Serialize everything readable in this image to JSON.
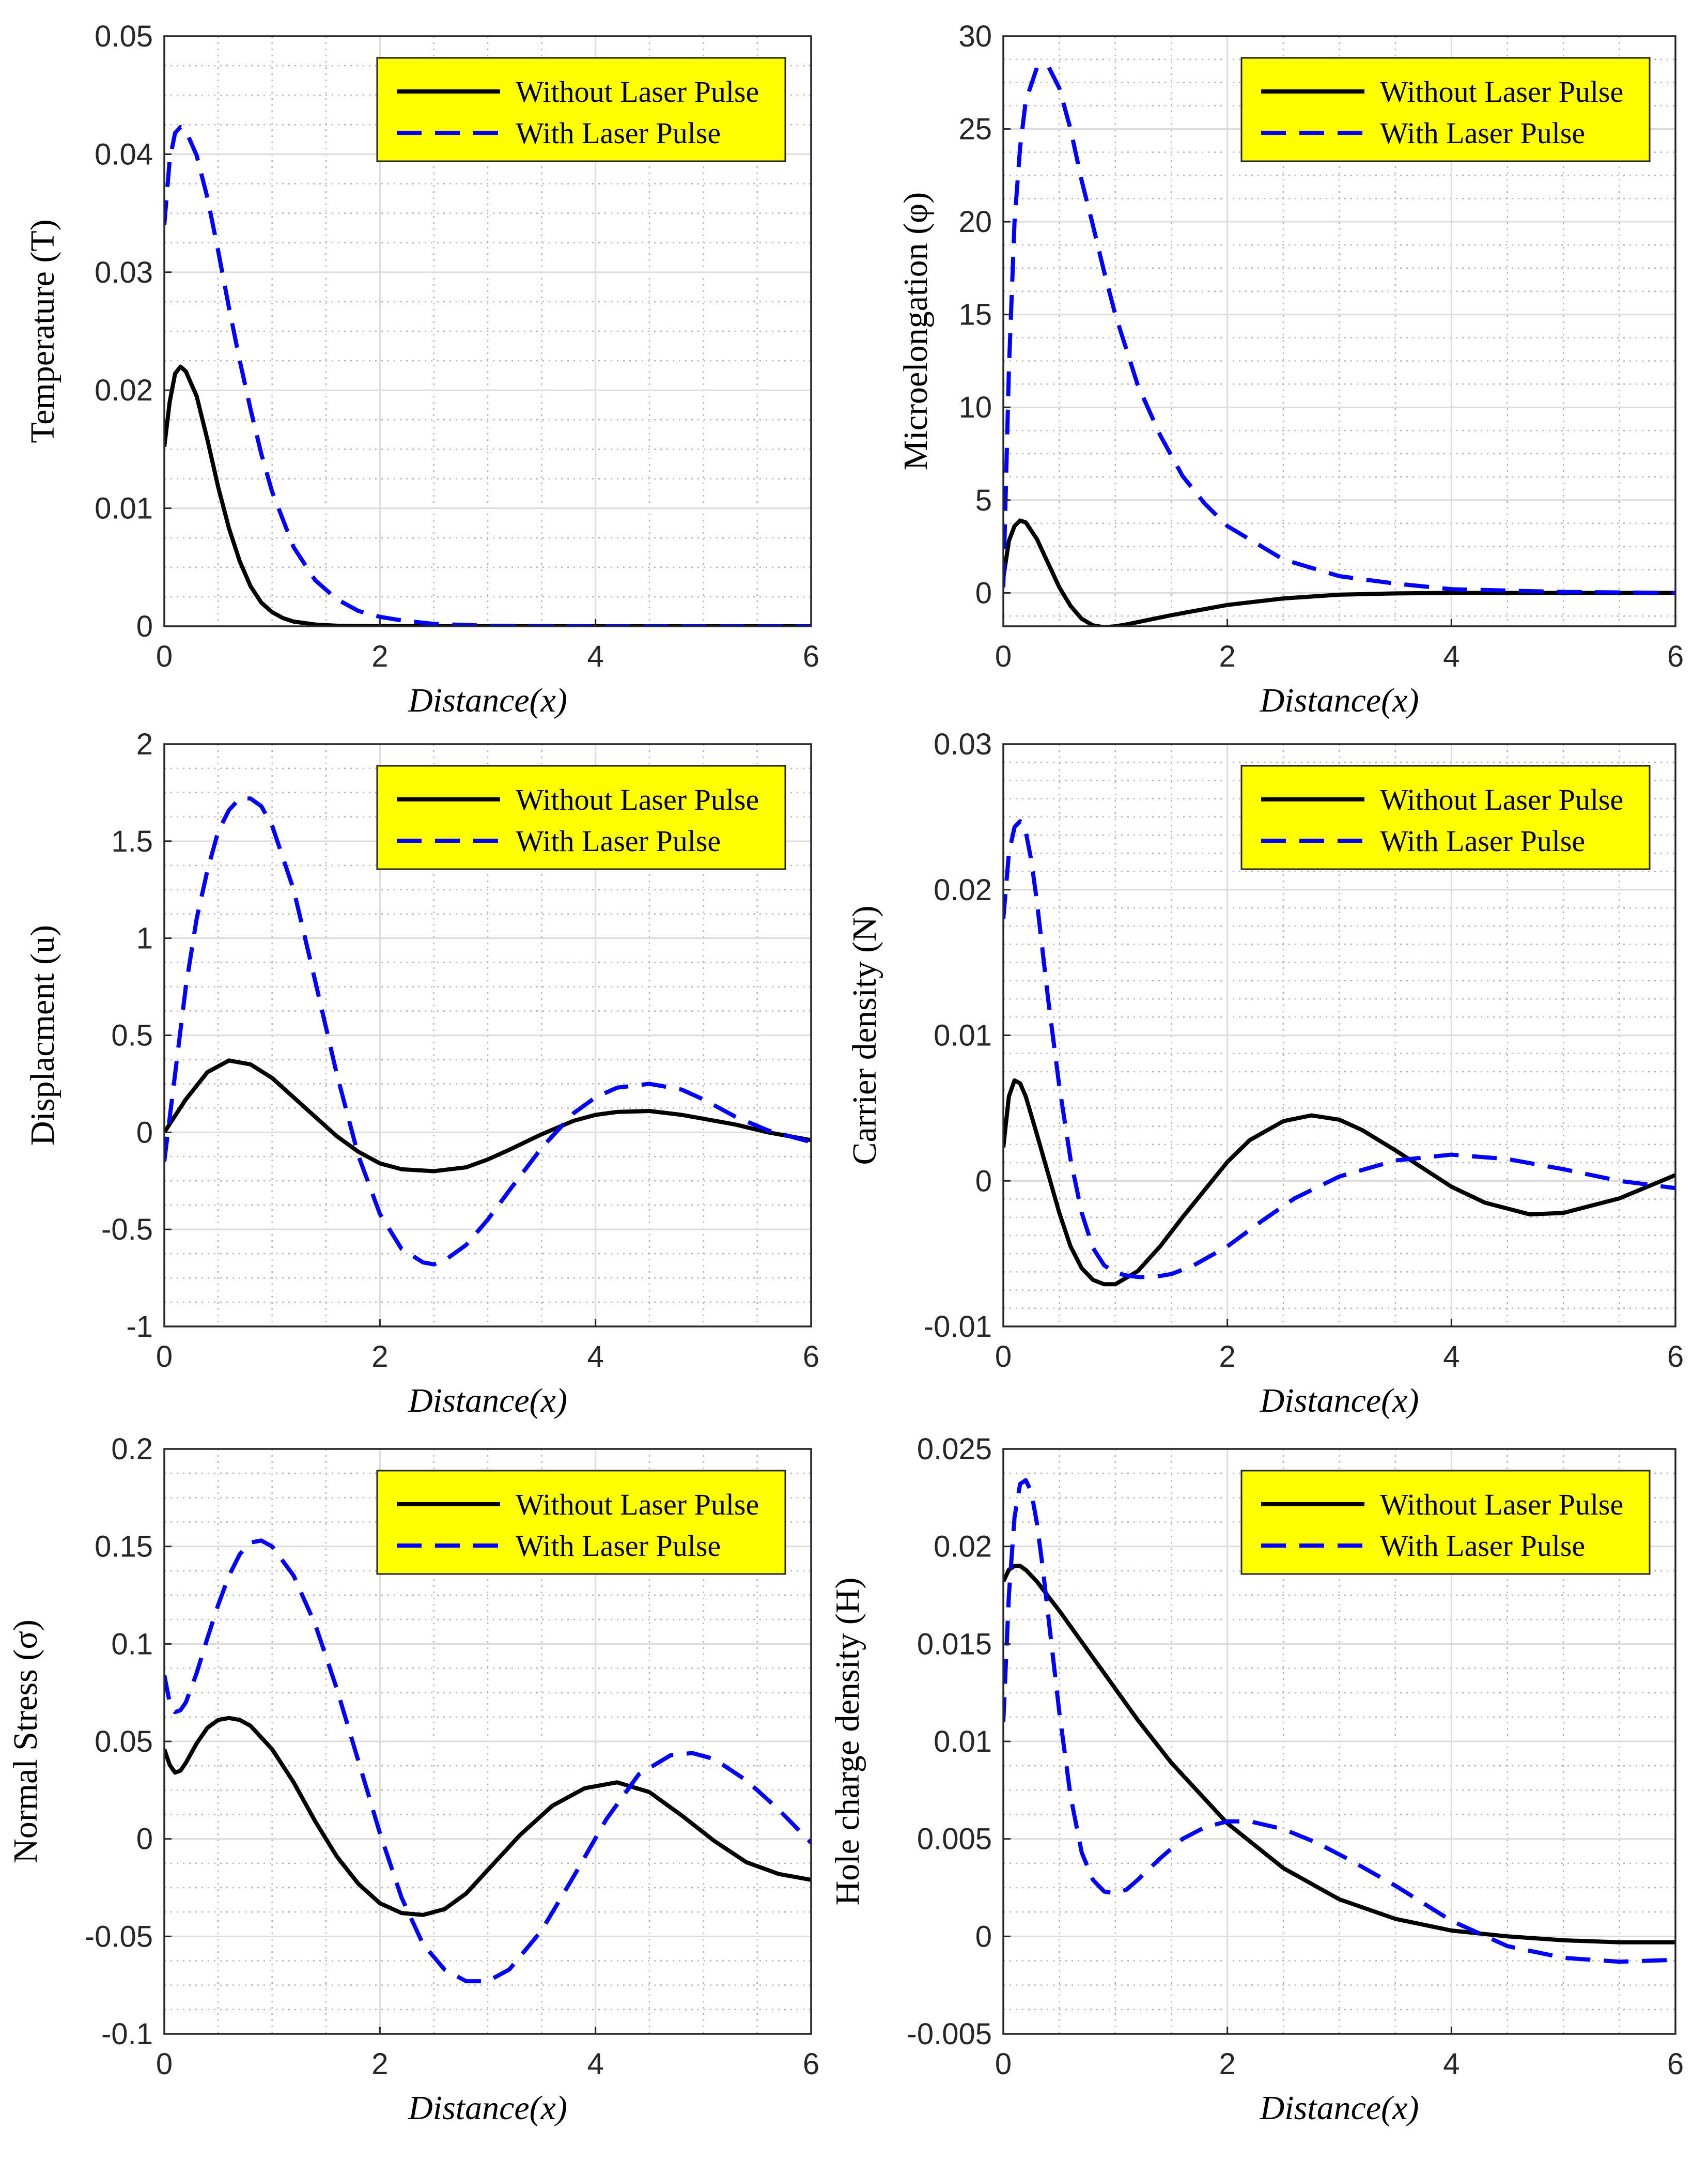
{
  "colors": {
    "without": "#000000",
    "with": "#0000ff",
    "legend_bg": "#ffff00",
    "grid_major": "#dcdcdc",
    "grid_minor": "#b4b4b4"
  },
  "legend": {
    "without_label": "Without Laser Pulse",
    "with_label": "With Laser Pulse"
  },
  "chart_data": [
    {
      "id": "temperature",
      "type": "line",
      "ylabel": "Temperature (T)",
      "xlabel": "Distance(x)",
      "xlim": [
        0,
        6
      ],
      "ylim": [
        0,
        0.05
      ],
      "xticks": [
        0,
        2,
        4,
        6
      ],
      "xtick_labels": [
        "0",
        "2",
        "4",
        "6"
      ],
      "yticks": [
        0,
        0.01,
        0.02,
        0.03,
        0.04,
        0.05
      ],
      "ytick_labels": [
        "0",
        "0.01",
        "0.02",
        "0.03",
        "0.04",
        "0.05"
      ],
      "grid": true,
      "legend_position": "top-right",
      "series": [
        {
          "name": "Without Laser Pulse",
          "style": "solid",
          "x": [
            0,
            0.05,
            0.1,
            0.15,
            0.2,
            0.3,
            0.4,
            0.5,
            0.6,
            0.7,
            0.8,
            0.9,
            1.0,
            1.1,
            1.2,
            1.4,
            1.6,
            1.8,
            2.0,
            2.5,
            3,
            4,
            5,
            6
          ],
          "y": [
            0.0152,
            0.019,
            0.0214,
            0.022,
            0.0216,
            0.0195,
            0.0158,
            0.0118,
            0.0083,
            0.0055,
            0.0034,
            0.002,
            0.0012,
            0.0007,
            0.0004,
            0.00015,
            5e-05,
            2e-05,
            1e-05,
            0,
            0,
            0,
            0,
            0
          ]
        },
        {
          "name": "With Laser Pulse",
          "style": "dashed",
          "x": [
            0,
            0.05,
            0.1,
            0.15,
            0.2,
            0.3,
            0.4,
            0.5,
            0.6,
            0.7,
            0.8,
            0.9,
            1.0,
            1.2,
            1.4,
            1.6,
            1.8,
            2.0,
            2.2,
            2.5,
            3,
            3.5,
            4,
            5,
            6
          ],
          "y": [
            0.034,
            0.0395,
            0.0418,
            0.0423,
            0.042,
            0.0399,
            0.0363,
            0.0318,
            0.027,
            0.0225,
            0.0184,
            0.0146,
            0.0114,
            0.0067,
            0.0039,
            0.0023,
            0.0013,
            0.0008,
            0.0005,
            0.0002,
            5e-05,
            1e-05,
            0,
            0,
            0
          ]
        }
      ]
    },
    {
      "id": "microelongation",
      "type": "line",
      "ylabel": "Microelongation (φ)",
      "xlabel": "Distance(x)",
      "xlim": [
        0,
        6
      ],
      "ylim": [
        -1.8,
        30
      ],
      "xticks": [
        0,
        2,
        4,
        6
      ],
      "xtick_labels": [
        "0",
        "2",
        "4",
        "6"
      ],
      "yticks": [
        0,
        5,
        10,
        15,
        20,
        25,
        30
      ],
      "ytick_labels": [
        "0",
        "5",
        "10",
        "15",
        "20",
        "25",
        "30"
      ],
      "grid": true,
      "legend_position": "top-right",
      "series": [
        {
          "name": "Without Laser Pulse",
          "style": "solid",
          "x": [
            0,
            0.05,
            0.1,
            0.15,
            0.2,
            0.3,
            0.4,
            0.5,
            0.6,
            0.7,
            0.8,
            0.9,
            1.0,
            1.1,
            1.3,
            1.5,
            2.0,
            2.5,
            3.0,
            3.5,
            4,
            5,
            6
          ],
          "y": [
            0.8,
            2.8,
            3.6,
            3.9,
            3.8,
            2.9,
            1.6,
            0.3,
            -0.7,
            -1.4,
            -1.75,
            -1.85,
            -1.8,
            -1.7,
            -1.45,
            -1.2,
            -0.65,
            -0.3,
            -0.1,
            -0.03,
            0,
            0,
            0
          ]
        },
        {
          "name": "With Laser Pulse",
          "style": "dashed",
          "x": [
            0,
            0.05,
            0.1,
            0.15,
            0.2,
            0.3,
            0.4,
            0.5,
            0.6,
            0.7,
            0.8,
            0.9,
            1.0,
            1.2,
            1.4,
            1.6,
            1.8,
            2.0,
            2.5,
            3.0,
            3.5,
            4,
            5,
            6
          ],
          "y": [
            0.3,
            12,
            20,
            24,
            26.5,
            28.3,
            28.4,
            27.2,
            25,
            22.2,
            19.8,
            17.3,
            15,
            11.2,
            8.5,
            6.3,
            4.8,
            3.6,
            1.8,
            0.9,
            0.5,
            0.2,
            0.05,
            0
          ]
        }
      ]
    },
    {
      "id": "displacement",
      "type": "line",
      "ylabel": "Displacment (u)",
      "xlabel": "Distance(x)",
      "xlim": [
        0,
        6
      ],
      "ylim": [
        -1,
        2
      ],
      "xticks": [
        0,
        2,
        4,
        6
      ],
      "xtick_labels": [
        "0",
        "2",
        "4",
        "6"
      ],
      "yticks": [
        -1,
        -0.5,
        0,
        0.5,
        1,
        1.5,
        2
      ],
      "ytick_labels": [
        "-1",
        "-0.5",
        "0",
        "0.5",
        "1",
        "1.5",
        "2"
      ],
      "grid": true,
      "legend_position": "top-right",
      "series": [
        {
          "name": "Without Laser Pulse",
          "style": "solid",
          "x": [
            0,
            0.2,
            0.4,
            0.6,
            0.8,
            1.0,
            1.2,
            1.4,
            1.6,
            1.8,
            2.0,
            2.2,
            2.5,
            2.8,
            3.0,
            3.2,
            3.5,
            3.8,
            4.0,
            4.2,
            4.5,
            4.8,
            5.0,
            5.3,
            5.6,
            6.0
          ],
          "y": [
            0,
            0.17,
            0.31,
            0.37,
            0.35,
            0.28,
            0.18,
            0.08,
            -0.02,
            -0.1,
            -0.16,
            -0.19,
            -0.2,
            -0.18,
            -0.14,
            -0.09,
            -0.01,
            0.06,
            0.09,
            0.105,
            0.11,
            0.09,
            0.07,
            0.04,
            0.0,
            -0.04
          ]
        },
        {
          "name": "With Laser Pulse",
          "style": "dashed",
          "x": [
            0,
            0.1,
            0.2,
            0.3,
            0.4,
            0.5,
            0.6,
            0.7,
            0.8,
            0.9,
            1.0,
            1.2,
            1.4,
            1.6,
            1.8,
            2.0,
            2.2,
            2.4,
            2.5,
            2.6,
            2.8,
            3.0,
            3.2,
            3.5,
            3.8,
            4.0,
            4.2,
            4.5,
            4.8,
            5.0,
            5.3,
            5.6,
            6.0
          ],
          "y": [
            -0.15,
            0.3,
            0.75,
            1.1,
            1.35,
            1.55,
            1.66,
            1.72,
            1.72,
            1.68,
            1.58,
            1.25,
            0.78,
            0.3,
            -0.12,
            -0.42,
            -0.6,
            -0.67,
            -0.68,
            -0.66,
            -0.58,
            -0.45,
            -0.3,
            -0.08,
            0.1,
            0.18,
            0.23,
            0.25,
            0.22,
            0.17,
            0.08,
            0.01,
            -0.05
          ]
        }
      ]
    },
    {
      "id": "carrier_density",
      "type": "line",
      "ylabel": "Carrier density (N)",
      "xlabel": "Distance(x)",
      "xlim": [
        0,
        6
      ],
      "ylim": [
        -0.01,
        0.03
      ],
      "xticks": [
        0,
        2,
        4,
        6
      ],
      "xtick_labels": [
        "0",
        "2",
        "4",
        "6"
      ],
      "yticks": [
        -0.01,
        0,
        0.01,
        0.02,
        0.03
      ],
      "ytick_labels": [
        "-0.01",
        "0",
        "0.01",
        "0.02",
        "0.03"
      ],
      "grid": true,
      "legend_position": "top-right",
      "series": [
        {
          "name": "Without Laser Pulse",
          "style": "solid",
          "x": [
            0,
            0.05,
            0.1,
            0.15,
            0.2,
            0.3,
            0.4,
            0.5,
            0.6,
            0.7,
            0.8,
            0.9,
            1.0,
            1.2,
            1.4,
            1.6,
            1.8,
            2.0,
            2.2,
            2.5,
            2.75,
            3.0,
            3.2,
            3.5,
            3.8,
            4.0,
            4.3,
            4.7,
            5.0,
            5.5,
            6.0
          ],
          "y": [
            0.0023,
            0.0058,
            0.0069,
            0.0067,
            0.0058,
            0.0032,
            0.0005,
            -0.0022,
            -0.0045,
            -0.006,
            -0.0068,
            -0.0071,
            -0.0071,
            -0.0062,
            -0.0045,
            -0.0025,
            -0.0006,
            0.0013,
            0.0028,
            0.0041,
            0.0045,
            0.0042,
            0.0035,
            0.0021,
            0.0006,
            -0.0004,
            -0.0015,
            -0.0023,
            -0.0022,
            -0.0012,
            0.0004
          ]
        },
        {
          "name": "With Laser Pulse",
          "style": "dashed",
          "x": [
            0,
            0.05,
            0.1,
            0.15,
            0.2,
            0.25,
            0.3,
            0.4,
            0.5,
            0.6,
            0.7,
            0.8,
            0.9,
            1.0,
            1.1,
            1.2,
            1.35,
            1.5,
            1.7,
            2.0,
            2.3,
            2.6,
            3.0,
            3.5,
            4.0,
            4.5,
            5.0,
            5.5,
            6.0
          ],
          "y": [
            0.018,
            0.0225,
            0.0243,
            0.0247,
            0.024,
            0.022,
            0.0192,
            0.0125,
            0.0065,
            0.0015,
            -0.0022,
            -0.0046,
            -0.0058,
            -0.0063,
            -0.0065,
            -0.0066,
            -0.0066,
            -0.0064,
            -0.0058,
            -0.0045,
            -0.0028,
            -0.0012,
            0.0003,
            0.0014,
            0.0018,
            0.0015,
            0.0008,
            0.0,
            -0.0005
          ]
        }
      ]
    },
    {
      "id": "normal_stress",
      "type": "line",
      "ylabel": "Normal Stress (σ)",
      "xlabel": "Distance(x)",
      "xlim": [
        0,
        6
      ],
      "ylim": [
        -0.1,
        0.2
      ],
      "xticks": [
        0,
        2,
        4,
        6
      ],
      "xtick_labels": [
        "0",
        "2",
        "4",
        "6"
      ],
      "yticks": [
        -0.1,
        -0.05,
        0,
        0.05,
        0.1,
        0.15,
        0.2
      ],
      "ytick_labels": [
        "-0.1",
        "-0.05",
        "0",
        "0.05",
        "0.1",
        "0.15",
        "0.2"
      ],
      "grid": true,
      "legend_position": "top-right",
      "series": [
        {
          "name": "Without Laser Pulse",
          "style": "solid",
          "x": [
            0,
            0.05,
            0.1,
            0.15,
            0.2,
            0.3,
            0.4,
            0.5,
            0.6,
            0.7,
            0.8,
            1.0,
            1.2,
            1.4,
            1.6,
            1.8,
            2.0,
            2.2,
            2.4,
            2.6,
            2.8,
            3.0,
            3.3,
            3.6,
            3.9,
            4.2,
            4.5,
            4.8,
            5.1,
            5.4,
            5.7,
            6.0
          ],
          "y": [
            0.046,
            0.038,
            0.034,
            0.035,
            0.039,
            0.049,
            0.057,
            0.061,
            0.062,
            0.061,
            0.058,
            0.046,
            0.029,
            0.009,
            -0.009,
            -0.023,
            -0.033,
            -0.038,
            -0.039,
            -0.036,
            -0.028,
            -0.016,
            0.002,
            0.017,
            0.026,
            0.029,
            0.024,
            0.012,
            -0.001,
            -0.012,
            -0.018,
            -0.021
          ]
        },
        {
          "name": "With Laser Pulse",
          "style": "dashed",
          "x": [
            0,
            0.05,
            0.1,
            0.15,
            0.2,
            0.3,
            0.4,
            0.5,
            0.6,
            0.7,
            0.8,
            0.9,
            1.0,
            1.2,
            1.4,
            1.6,
            1.8,
            2.0,
            2.2,
            2.4,
            2.6,
            2.8,
            3.0,
            3.2,
            3.5,
            3.8,
            4.1,
            4.4,
            4.7,
            4.9,
            5.1,
            5.4,
            5.7,
            6.0
          ],
          "y": [
            0.084,
            0.07,
            0.065,
            0.066,
            0.07,
            0.085,
            0.103,
            0.12,
            0.135,
            0.146,
            0.152,
            0.153,
            0.15,
            0.135,
            0.11,
            0.077,
            0.04,
            0.003,
            -0.03,
            -0.054,
            -0.067,
            -0.073,
            -0.073,
            -0.067,
            -0.047,
            -0.019,
            0.01,
            0.033,
            0.043,
            0.044,
            0.041,
            0.03,
            0.015,
            -0.002
          ]
        }
      ]
    },
    {
      "id": "hole_charge_density",
      "type": "line",
      "ylabel": "Hole  charge  density (H)",
      "xlabel": "Distance(x)",
      "xlim": [
        0,
        6
      ],
      "ylim": [
        -0.005,
        0.025
      ],
      "xticks": [
        0,
        2,
        4,
        6
      ],
      "xtick_labels": [
        "0",
        "2",
        "4",
        "6"
      ],
      "yticks": [
        -0.005,
        0,
        0.005,
        0.01,
        0.015,
        0.02,
        0.025
      ],
      "ytick_labels": [
        "-0.005",
        "0",
        "0.005",
        "0.01",
        "0.015",
        "0.02",
        "0.025"
      ],
      "grid": true,
      "legend_position": "top-right",
      "series": [
        {
          "name": "Without Laser Pulse",
          "style": "solid",
          "x": [
            0,
            0.05,
            0.1,
            0.15,
            0.2,
            0.3,
            0.5,
            0.8,
            1.0,
            1.2,
            1.5,
            2.0,
            2.5,
            3.0,
            3.5,
            4.0,
            4.5,
            5.0,
            5.5,
            6.0
          ],
          "y": [
            0.0182,
            0.0188,
            0.019,
            0.019,
            0.0188,
            0.0182,
            0.0167,
            0.0143,
            0.0127,
            0.0111,
            0.0089,
            0.0058,
            0.0035,
            0.0019,
            0.0009,
            0.0003,
            0.0,
            -0.0002,
            -0.0003,
            -0.0003
          ]
        },
        {
          "name": "With Laser Pulse",
          "style": "dashed",
          "x": [
            0,
            0.05,
            0.1,
            0.15,
            0.2,
            0.25,
            0.3,
            0.35,
            0.4,
            0.5,
            0.6,
            0.7,
            0.8,
            0.9,
            1.0,
            1.1,
            1.2,
            1.4,
            1.6,
            1.8,
            2.0,
            2.2,
            2.5,
            2.8,
            3.1,
            3.5,
            4.0,
            4.5,
            5.0,
            5.5,
            6.0
          ],
          "y": [
            0.011,
            0.0175,
            0.0215,
            0.0232,
            0.0234,
            0.0228,
            0.0212,
            0.019,
            0.0165,
            0.0115,
            0.0072,
            0.0043,
            0.0029,
            0.0023,
            0.0022,
            0.0024,
            0.0029,
            0.004,
            0.005,
            0.0056,
            0.0059,
            0.0059,
            0.0055,
            0.0048,
            0.0039,
            0.0026,
            0.0008,
            -0.0005,
            -0.0011,
            -0.0013,
            -0.0012
          ]
        }
      ]
    }
  ]
}
